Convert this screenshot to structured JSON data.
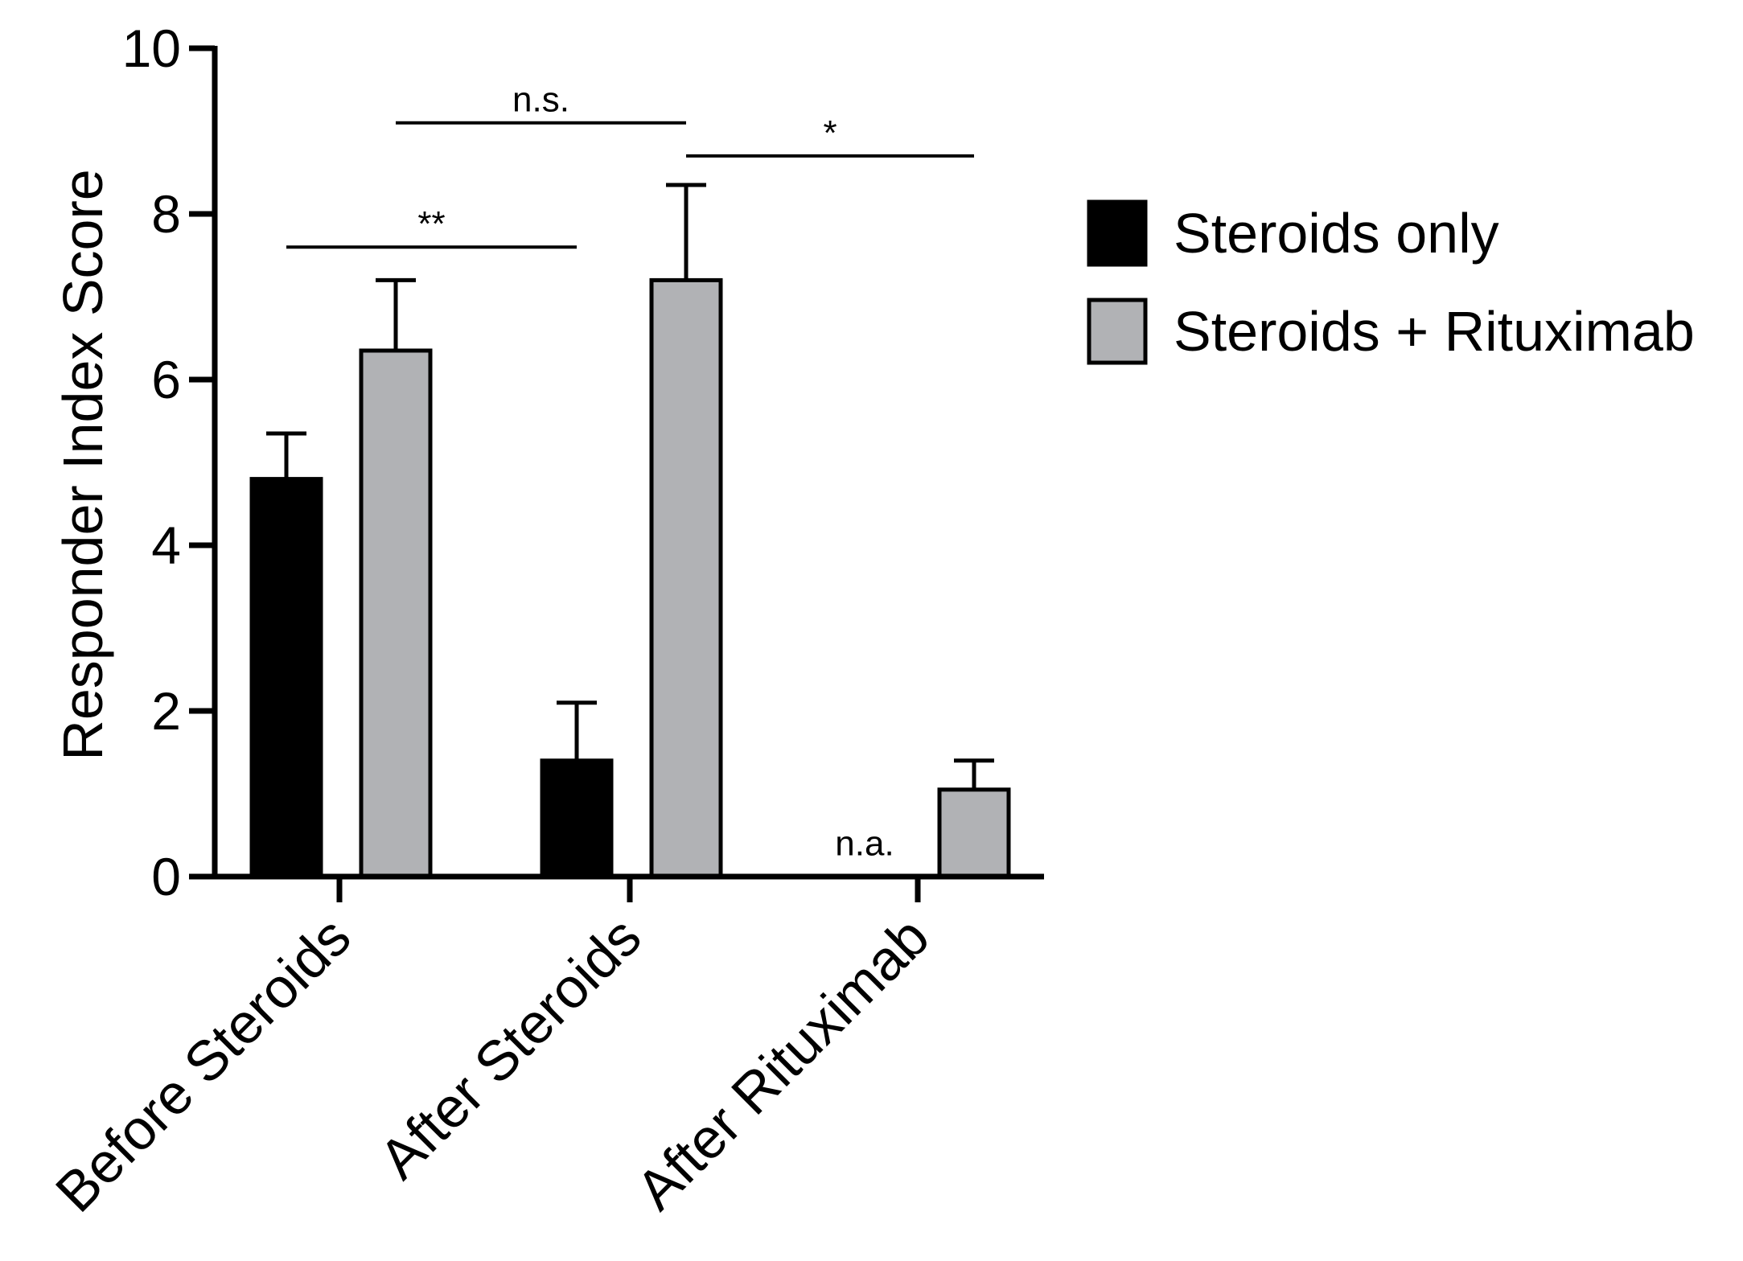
{
  "chart_data": {
    "type": "bar",
    "title": "",
    "xlabel": "",
    "ylabel": "Responder Index Score",
    "ylim": [
      0,
      10
    ],
    "yticks": [
      0,
      2,
      4,
      6,
      8,
      10
    ],
    "categories": [
      "Before Steroids",
      "After Steroids",
      "After Rituximab"
    ],
    "legend_position": "right",
    "series": [
      {
        "name": "Steroids only",
        "color": "#000000",
        "values": [
          4.8,
          1.4,
          null
        ],
        "errors": [
          0.55,
          0.7,
          null
        ]
      },
      {
        "name": "Steroids + Rituximab",
        "color": "#b1b2b5",
        "values": [
          6.35,
          7.2,
          1.05
        ],
        "errors": [
          0.85,
          1.15,
          0.35
        ]
      }
    ],
    "annotations": [
      {
        "text": "**",
        "from": [
          0,
          0
        ],
        "to": [
          1,
          0
        ],
        "y": 7.6
      },
      {
        "text": "n.s.",
        "from": [
          0,
          1
        ],
        "to": [
          1,
          1
        ],
        "y": 9.1
      },
      {
        "text": "*",
        "from": [
          1,
          1
        ],
        "to": [
          2,
          1
        ],
        "y": 8.7
      },
      {
        "text": "n.a.",
        "at": [
          2,
          0
        ],
        "y": 0.2
      }
    ]
  }
}
